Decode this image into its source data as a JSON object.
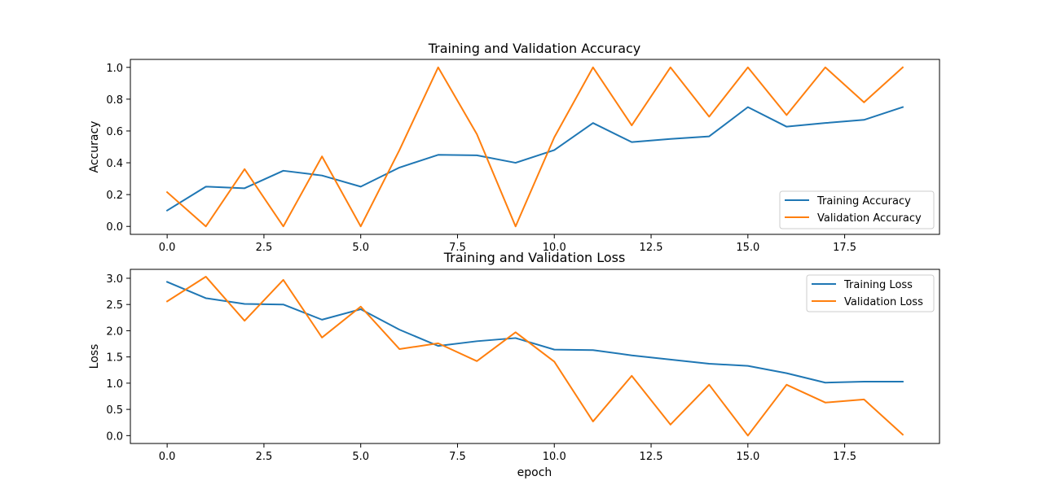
{
  "chart_data": [
    {
      "type": "line",
      "title": "Training and Validation Accuracy",
      "xlabel": "",
      "ylabel": "Accuracy",
      "xlim": [
        -0.95,
        19.95
      ],
      "ylim": [
        -0.05,
        1.05
      ],
      "xticks": [
        0.0,
        2.5,
        5.0,
        7.5,
        10.0,
        12.5,
        15.0,
        17.5
      ],
      "xtick_labels": [
        "0.0",
        "2.5",
        "5.0",
        "7.5",
        "10.0",
        "12.5",
        "15.0",
        "17.5"
      ],
      "yticks": [
        0.0,
        0.2,
        0.4,
        0.6,
        0.8,
        1.0
      ],
      "ytick_labels": [
        "0.0",
        "0.2",
        "0.4",
        "0.6",
        "0.8",
        "1.0"
      ],
      "grid": false,
      "legend_position": "lower-right",
      "x": [
        0,
        1,
        2,
        3,
        4,
        5,
        6,
        7,
        8,
        9,
        10,
        11,
        12,
        13,
        14,
        15,
        16,
        17,
        18,
        19
      ],
      "series": [
        {
          "name": "Training Accuracy",
          "color": "#1f77b4",
          "values": [
            0.1,
            0.25,
            0.24,
            0.35,
            0.32,
            0.25,
            0.37,
            0.45,
            0.447,
            0.4,
            0.48,
            0.65,
            0.53,
            0.55,
            0.566,
            0.75,
            0.627,
            0.65,
            0.67,
            0.75
          ]
        },
        {
          "name": "Validation Accuracy",
          "color": "#ff7f0e",
          "values": [
            0.215,
            0.0,
            0.36,
            0.0,
            0.44,
            0.0,
            0.48,
            1.0,
            0.58,
            0.0,
            0.56,
            1.0,
            0.635,
            1.0,
            0.69,
            1.0,
            0.7,
            1.0,
            0.78,
            1.0
          ]
        }
      ]
    },
    {
      "type": "line",
      "title": "Training and Validation Loss",
      "xlabel": "epoch",
      "ylabel": "Loss",
      "xlim": [
        -0.95,
        19.95
      ],
      "ylim": [
        -0.15,
        3.17
      ],
      "xticks": [
        0.0,
        2.5,
        5.0,
        7.5,
        10.0,
        12.5,
        15.0,
        17.5
      ],
      "xtick_labels": [
        "0.0",
        "2.5",
        "5.0",
        "7.5",
        "10.0",
        "12.5",
        "15.0",
        "17.5"
      ],
      "yticks": [
        0.0,
        0.5,
        1.0,
        1.5,
        2.0,
        2.5,
        3.0
      ],
      "ytick_labels": [
        "0.0",
        "0.5",
        "1.0",
        "1.5",
        "2.0",
        "2.5",
        "3.0"
      ],
      "grid": false,
      "legend_position": "upper-right",
      "x": [
        0,
        1,
        2,
        3,
        4,
        5,
        6,
        7,
        8,
        9,
        10,
        11,
        12,
        13,
        14,
        15,
        16,
        17,
        18,
        19
      ],
      "series": [
        {
          "name": "Training Loss",
          "color": "#1f77b4",
          "values": [
            2.93,
            2.62,
            2.51,
            2.5,
            2.21,
            2.41,
            2.02,
            1.71,
            1.8,
            1.86,
            1.64,
            1.63,
            1.53,
            1.45,
            1.37,
            1.33,
            1.19,
            1.01,
            1.03,
            1.03
          ]
        },
        {
          "name": "Validation Loss",
          "color": "#ff7f0e",
          "values": [
            2.56,
            3.03,
            2.19,
            2.97,
            1.87,
            2.46,
            1.65,
            1.76,
            1.42,
            1.97,
            1.41,
            0.27,
            1.14,
            0.21,
            0.97,
            0.0,
            0.97,
            0.63,
            0.69,
            0.02
          ]
        }
      ]
    }
  ]
}
